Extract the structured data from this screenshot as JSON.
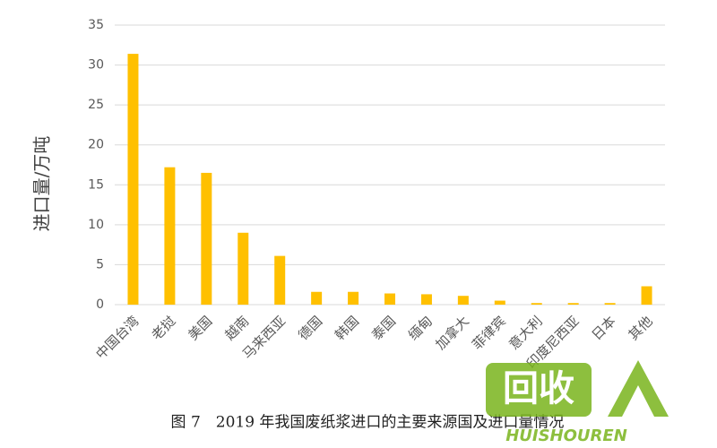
{
  "chart_data": {
    "type": "bar",
    "title": "图 7　2019 年我国废纸浆进口的主要来源国及进口量情况",
    "y_label": "进口量/万吨",
    "categories": [
      "中国台湾",
      "老挝",
      "美国",
      "越南",
      "马来西亚",
      "德国",
      "韩国",
      "泰国",
      "缅甸",
      "加拿大",
      "菲律宾",
      "意大利",
      "印度尼西亚",
      "日本",
      "其他"
    ],
    "values": [
      31.4,
      17.2,
      16.5,
      9.0,
      6.1,
      1.6,
      1.6,
      1.4,
      1.3,
      1.1,
      0.5,
      0.2,
      0.2,
      0.2,
      2.3
    ],
    "color": "#ffc000",
    "ylim": [
      0,
      35
    ],
    "yticks": [
      0,
      5,
      10,
      15,
      20,
      25,
      30,
      35
    ],
    "grid": true
  },
  "watermark": {
    "text": "回收",
    "subtext": "HUISHOUREN"
  }
}
